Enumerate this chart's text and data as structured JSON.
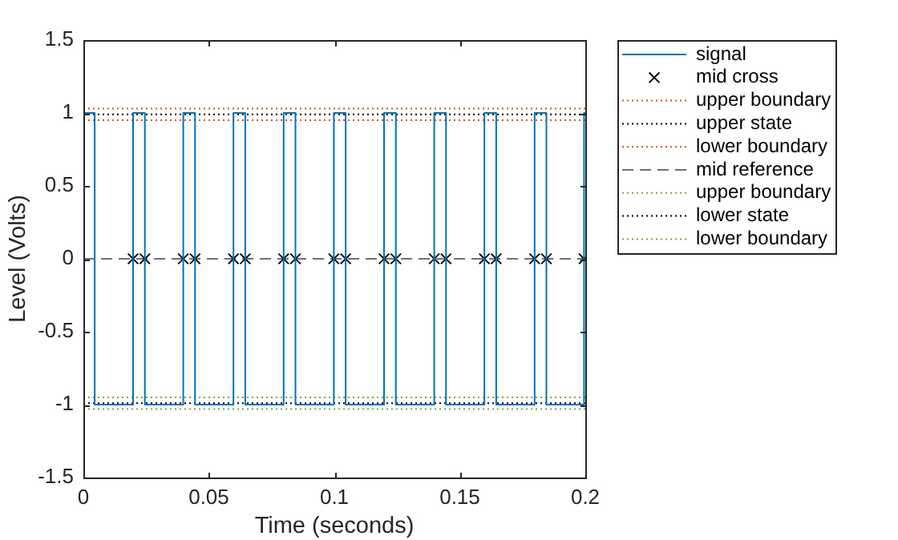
{
  "chart_data": {
    "type": "line",
    "xlabel": "Time (seconds)",
    "ylabel": "Level (Volts)",
    "xlim": [
      0,
      0.2
    ],
    "xticks": [
      0,
      0.05,
      0.1,
      0.15,
      0.2
    ],
    "ylim": [
      -1.5,
      1.5
    ],
    "yticks": [
      -1.5,
      -1,
      -0.5,
      0,
      0.5,
      1,
      1.5
    ],
    "legend": "top right",
    "series": [
      {
        "name": "signal",
        "type": "step",
        "color": "#0072bd",
        "marker": "none",
        "line_style": "solid",
        "x": [
          0,
          0.0045,
          0.0198,
          0.0245,
          0.0398,
          0.0445,
          0.0598,
          0.0645,
          0.0798,
          0.0845,
          0.0998,
          0.1045,
          0.1198,
          0.1245,
          0.1398,
          0.1445,
          0.1598,
          0.1645,
          0.1798,
          0.1845,
          0.1995,
          0.2
        ],
        "values": [
          1,
          -1,
          1,
          -1,
          1,
          -1,
          1,
          -1,
          1,
          -1,
          1,
          -1,
          1,
          -1,
          1,
          -1,
          1,
          -1,
          1,
          -1,
          1,
          1
        ]
      },
      {
        "name": "mid cross",
        "type": "scatter",
        "color": "#000000",
        "marker": "cross",
        "x": [
          0.0198,
          0.0245,
          0.0398,
          0.0445,
          0.0598,
          0.0645,
          0.0798,
          0.0845,
          0.0998,
          0.1045,
          0.1198,
          0.1245,
          0.1398,
          0.1445,
          0.1598,
          0.1645,
          0.1798,
          0.1845,
          0.1995
        ],
        "values": [
          0,
          0,
          0,
          0,
          0,
          0,
          0,
          0,
          0,
          0,
          0,
          0,
          0,
          0,
          0,
          0,
          0,
          0,
          0
        ]
      },
      {
        "name": "upper boundary",
        "type": "line",
        "color": "#d95319",
        "marker": "none",
        "line_style": "dotted",
        "x": [
          0,
          0.2
        ],
        "values": [
          1.03,
          1.03
        ]
      },
      {
        "name": "upper state",
        "type": "line",
        "color": "#000000",
        "marker": "none",
        "line_style": "dotted",
        "x": [
          0,
          0.2
        ],
        "values": [
          0.99,
          0.99
        ]
      },
      {
        "name": "lower boundary",
        "type": "line",
        "color": "#d95319",
        "marker": "none",
        "line_style": "dotted",
        "x": [
          0,
          0.2
        ],
        "values": [
          0.95,
          0.95
        ]
      },
      {
        "name": "mid reference",
        "type": "line",
        "color": "#707070",
        "marker": "none",
        "line_style": "dashed",
        "x": [
          0,
          0.2
        ],
        "values": [
          0,
          0
        ]
      },
      {
        "name": "upper boundary",
        "type": "line",
        "color": "#77ac30",
        "marker": "none",
        "line_style": "dotted",
        "x": [
          0,
          0.2
        ],
        "values": [
          -0.95,
          -0.95
        ]
      },
      {
        "name": "lower state",
        "type": "line",
        "color": "#000000",
        "marker": "none",
        "line_style": "dotted",
        "x": [
          0,
          0.2
        ],
        "values": [
          -0.99,
          -0.99
        ]
      },
      {
        "name": "lower boundary",
        "type": "line",
        "color": "#77ac30",
        "marker": "none",
        "line_style": "dotted",
        "x": [
          0,
          0.2
        ],
        "values": [
          -1.03,
          -1.03
        ]
      }
    ]
  }
}
